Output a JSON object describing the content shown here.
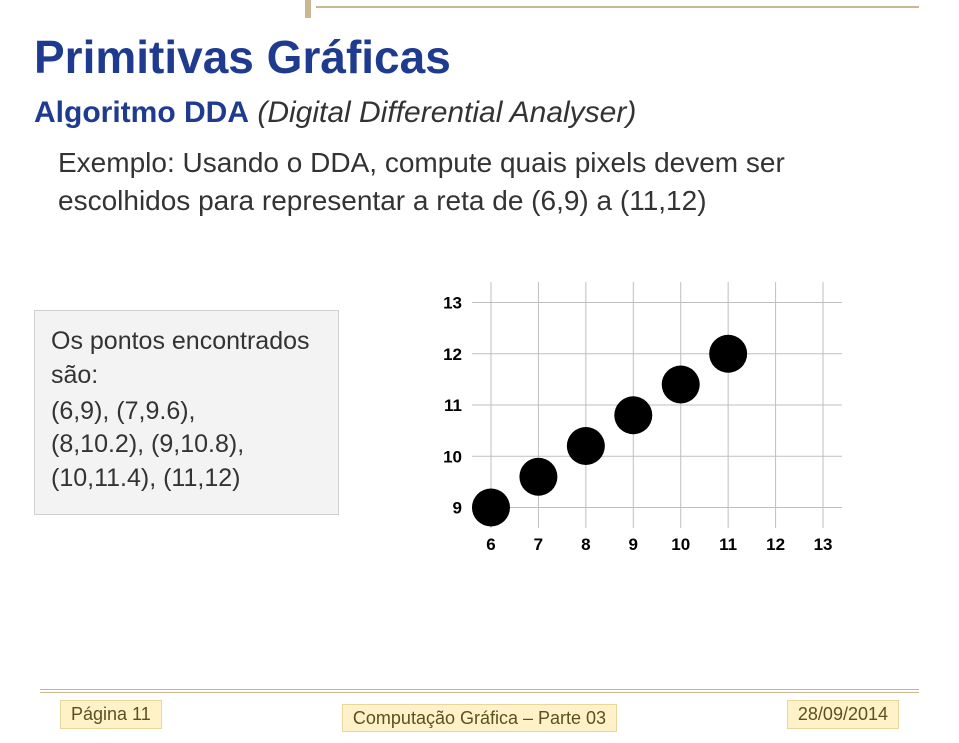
{
  "header": {
    "title": "Primitivas Gráficas",
    "algorithm_label": "Algoritmo DDA",
    "algorithm_paren": "(Digital Differential Analyser)"
  },
  "example_text": "Exemplo: Usando o DDA, compute quais pixels devem ser escolhidos para representar a reta de  (6,9) a (11,12)",
  "results": {
    "header": "Os pontos encontrados são:",
    "line1": "(6,9),   (7,9.6),",
    "line2": "(8,10.2),   (9,10.8),",
    "line3": "(10,11.4),   (11,12)"
  },
  "chart": {
    "type": "scatter",
    "x_ticks": [
      6,
      7,
      8,
      9,
      10,
      11,
      12,
      13
    ],
    "y_ticks": [
      9,
      10,
      11,
      12,
      13
    ],
    "xlim": [
      5.6,
      13.4
    ],
    "ylim": [
      8.6,
      13.4
    ],
    "tick_fontsize": 17,
    "tick_fontweight": "bold",
    "tick_color": "#000000",
    "grid_color": "#bfbfbf",
    "grid_width": 1,
    "background_color": "#ffffff",
    "marker_color": "#000000",
    "marker_radius": 19,
    "points": [
      {
        "x": 6,
        "y": 9
      },
      {
        "x": 7,
        "y": 9.6
      },
      {
        "x": 8,
        "y": 10.2
      },
      {
        "x": 9,
        "y": 10.8
      },
      {
        "x": 10,
        "y": 11.4
      },
      {
        "x": 11,
        "y": 12
      }
    ]
  },
  "footer": {
    "page_label": "Página 11",
    "center": "Computação Gráfica – Parte 03",
    "date": "28/09/2014"
  }
}
